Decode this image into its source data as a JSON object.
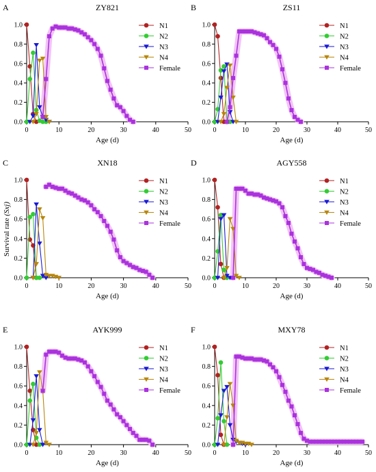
{
  "figure": {
    "ylabel": "Survival rate",
    "ylabel_sym": "(Sxj)"
  },
  "chart_data": [
    {
      "type": "line",
      "panel": "A",
      "title": "ZY821",
      "xlabel": "Age (d)",
      "ylabel": "",
      "xlim": [
        0,
        50
      ],
      "ylim": [
        0,
        1.0
      ],
      "xticks": [
        0,
        10,
        20,
        30,
        40,
        50
      ],
      "yticks": [
        0.0,
        0.2,
        0.4,
        0.6,
        0.8,
        1.0
      ],
      "legend": "top-right",
      "series": [
        {
          "name": "N1",
          "x": [
            0,
            1,
            2,
            3
          ],
          "y": [
            1.0,
            0.57,
            0.08,
            0.0
          ]
        },
        {
          "name": "N2",
          "x": [
            0,
            1,
            2,
            3,
            4,
            5,
            6
          ],
          "y": [
            0.0,
            0.44,
            0.71,
            0.12,
            0.01,
            0.0,
            0.0
          ]
        },
        {
          "name": "N3",
          "x": [
            1,
            2,
            3,
            4,
            5,
            6,
            7
          ],
          "y": [
            0.0,
            0.06,
            0.79,
            0.15,
            0.05,
            0.02,
            0.0
          ]
        },
        {
          "name": "N4",
          "x": [
            2,
            3,
            4,
            5,
            6,
            7
          ],
          "y": [
            0.0,
            0.08,
            0.63,
            0.65,
            0.05,
            0.0
          ]
        },
        {
          "name": "Female",
          "x": [
            5,
            6,
            7,
            8,
            9,
            10,
            11,
            12,
            13,
            14,
            15,
            16,
            17,
            18,
            19,
            20,
            21,
            22,
            23,
            24,
            25,
            26,
            27,
            28,
            29,
            30,
            31,
            32,
            33
          ],
          "y": [
            0.05,
            0.44,
            0.88,
            0.96,
            0.98,
            0.97,
            0.97,
            0.97,
            0.96,
            0.96,
            0.95,
            0.94,
            0.92,
            0.9,
            0.87,
            0.84,
            0.8,
            0.75,
            0.68,
            0.55,
            0.42,
            0.33,
            0.24,
            0.17,
            0.15,
            0.11,
            0.06,
            0.02,
            0.0
          ]
        }
      ]
    },
    {
      "type": "line",
      "panel": "B",
      "title": "ZS11",
      "xlabel": "Age (d)",
      "ylabel": "",
      "xlim": [
        0,
        50
      ],
      "ylim": [
        0,
        1.0
      ],
      "xticks": [
        0,
        10,
        20,
        30,
        40,
        50
      ],
      "yticks": [
        0.0,
        0.2,
        0.4,
        0.6,
        0.8,
        1.0
      ],
      "legend": "top-right",
      "series": [
        {
          "name": "N1",
          "x": [
            0,
            1,
            2,
            3
          ],
          "y": [
            1.0,
            0.88,
            0.45,
            0.0
          ]
        },
        {
          "name": "N2",
          "x": [
            0,
            1,
            2,
            3,
            4,
            5
          ],
          "y": [
            0.0,
            0.13,
            0.53,
            0.57,
            0.0,
            0.0
          ]
        },
        {
          "name": "N3",
          "x": [
            1,
            2,
            3,
            4,
            5,
            6
          ],
          "y": [
            0.0,
            0.25,
            0.52,
            0.59,
            0.1,
            0.0
          ]
        },
        {
          "name": "N4",
          "x": [
            2,
            3,
            4,
            5,
            6,
            7
          ],
          "y": [
            0.0,
            0.08,
            0.35,
            0.58,
            0.25,
            0.0
          ]
        },
        {
          "name": "Female",
          "x": [
            4,
            5,
            6,
            7,
            8,
            9,
            10,
            11,
            12,
            13,
            14,
            15,
            16,
            17,
            18,
            19,
            20,
            21,
            22,
            23,
            24,
            25,
            26,
            27,
            28
          ],
          "y": [
            0.0,
            0.15,
            0.45,
            0.68,
            0.93,
            0.93,
            0.93,
            0.93,
            0.93,
            0.92,
            0.91,
            0.9,
            0.89,
            0.86,
            0.82,
            0.79,
            0.75,
            0.67,
            0.54,
            0.4,
            0.24,
            0.12,
            0.05,
            0.02,
            0.0
          ]
        }
      ]
    },
    {
      "type": "line",
      "panel": "C",
      "title": "XN18",
      "xlabel": "Age (d)",
      "ylabel": "",
      "xlim": [
        0,
        50
      ],
      "ylim": [
        0,
        1.0
      ],
      "xticks": [
        0,
        10,
        20,
        30,
        40,
        50
      ],
      "yticks": [
        0.0,
        0.2,
        0.4,
        0.6,
        0.8,
        1.0
      ],
      "legend": "top-right",
      "series": [
        {
          "name": "N1",
          "x": [
            0,
            1,
            2,
            3
          ],
          "y": [
            1.0,
            0.39,
            0.33,
            0.0
          ]
        },
        {
          "name": "N2",
          "x": [
            0,
            1,
            2,
            3,
            4
          ],
          "y": [
            0.0,
            0.62,
            0.65,
            0.0,
            0.0
          ]
        },
        {
          "name": "N3",
          "x": [
            2,
            3,
            4,
            5,
            6
          ],
          "y": [
            0.0,
            0.75,
            0.35,
            0.02,
            0.0
          ]
        },
        {
          "name": "N4",
          "x": [
            2,
            3,
            4,
            5,
            6,
            7,
            8,
            9,
            10
          ],
          "y": [
            0.0,
            0.14,
            0.7,
            0.61,
            0.03,
            0.02,
            0.02,
            0.01,
            0.0
          ]
        },
        {
          "name": "Female",
          "x": [
            6,
            7,
            8,
            9,
            10,
            11,
            12,
            13,
            14,
            15,
            16,
            17,
            18,
            19,
            20,
            21,
            22,
            23,
            24,
            25,
            26,
            27,
            28,
            29,
            30,
            31,
            32,
            33,
            34,
            35,
            36,
            37,
            38,
            39
          ],
          "y": [
            0.93,
            0.95,
            0.93,
            0.92,
            0.91,
            0.91,
            0.89,
            0.87,
            0.86,
            0.84,
            0.82,
            0.8,
            0.79,
            0.77,
            0.74,
            0.7,
            0.67,
            0.63,
            0.58,
            0.53,
            0.47,
            0.39,
            0.28,
            0.21,
            0.17,
            0.15,
            0.13,
            0.11,
            0.1,
            0.08,
            0.07,
            0.06,
            0.03,
            0.0
          ]
        }
      ]
    },
    {
      "type": "line",
      "panel": "D",
      "title": "AGY558",
      "xlabel": "Age (d)",
      "ylabel": "",
      "xlim": [
        0,
        50
      ],
      "ylim": [
        0,
        1.0
      ],
      "xticks": [
        0,
        10,
        20,
        30,
        40,
        50
      ],
      "yticks": [
        0.0,
        0.2,
        0.4,
        0.6,
        0.8,
        1.0
      ],
      "legend": "top-right",
      "series": [
        {
          "name": "N1",
          "x": [
            0,
            1,
            2,
            3
          ],
          "y": [
            1.0,
            0.72,
            0.14,
            0.0
          ]
        },
        {
          "name": "N2",
          "x": [
            0,
            1,
            2,
            3,
            4
          ],
          "y": [
            0.0,
            0.27,
            0.64,
            0.08,
            0.0
          ]
        },
        {
          "name": "N3",
          "x": [
            1,
            2,
            3,
            4,
            5
          ],
          "y": [
            0.0,
            0.6,
            0.64,
            0.02,
            0.0
          ]
        },
        {
          "name": "N4",
          "x": [
            3,
            4,
            5,
            6,
            7,
            8
          ],
          "y": [
            0.0,
            0.1,
            0.6,
            0.5,
            0.02,
            0.0
          ]
        },
        {
          "name": "Female",
          "x": [
            6,
            7,
            8,
            9,
            10,
            11,
            12,
            13,
            14,
            15,
            16,
            17,
            18,
            19,
            20,
            21,
            22,
            23,
            24,
            25,
            26,
            27,
            28,
            29,
            30,
            31,
            32,
            33,
            34,
            35,
            36,
            37,
            38
          ],
          "y": [
            0.0,
            0.91,
            0.91,
            0.91,
            0.89,
            0.86,
            0.86,
            0.85,
            0.85,
            0.84,
            0.82,
            0.81,
            0.8,
            0.79,
            0.78,
            0.76,
            0.72,
            0.63,
            0.56,
            0.45,
            0.37,
            0.3,
            0.21,
            0.14,
            0.1,
            0.09,
            0.08,
            0.06,
            0.05,
            0.03,
            0.02,
            0.01,
            0.0
          ]
        }
      ]
    },
    {
      "type": "line",
      "panel": "E",
      "title": "AYK999",
      "xlabel": "Age (d)",
      "ylabel": "",
      "xlim": [
        0,
        50
      ],
      "ylim": [
        0,
        1.0
      ],
      "xticks": [
        0,
        10,
        20,
        30,
        40,
        50
      ],
      "yticks": [
        0.0,
        0.2,
        0.4,
        0.6,
        0.8,
        1.0
      ],
      "legend": "top-right",
      "series": [
        {
          "name": "N1",
          "x": [
            0,
            1,
            2,
            3
          ],
          "y": [
            1.0,
            0.55,
            0.15,
            0.0
          ]
        },
        {
          "name": "N2",
          "x": [
            0,
            1,
            2,
            3,
            4
          ],
          "y": [
            0.0,
            0.45,
            0.62,
            0.07,
            0.0
          ]
        },
        {
          "name": "N3",
          "x": [
            1,
            2,
            3,
            4,
            5
          ],
          "y": [
            0.0,
            0.25,
            0.7,
            0.15,
            0.0
          ]
        },
        {
          "name": "N4",
          "x": [
            2,
            3,
            4,
            5,
            6,
            7
          ],
          "y": [
            0.0,
            0.12,
            0.74,
            0.55,
            0.02,
            0.0
          ]
        },
        {
          "name": "Female",
          "x": [
            5,
            6,
            7,
            8,
            9,
            10,
            11,
            12,
            13,
            14,
            15,
            16,
            17,
            18,
            19,
            20,
            21,
            22,
            23,
            24,
            25,
            26,
            27,
            28,
            29,
            30,
            31,
            32,
            33,
            34,
            35,
            36,
            37,
            38,
            39
          ],
          "y": [
            0.55,
            0.92,
            0.95,
            0.95,
            0.95,
            0.94,
            0.91,
            0.89,
            0.88,
            0.88,
            0.88,
            0.87,
            0.86,
            0.84,
            0.8,
            0.75,
            0.7,
            0.64,
            0.59,
            0.52,
            0.45,
            0.41,
            0.36,
            0.31,
            0.28,
            0.24,
            0.2,
            0.16,
            0.12,
            0.09,
            0.05,
            0.05,
            0.05,
            0.04,
            0.0
          ]
        }
      ]
    },
    {
      "type": "line",
      "panel": "F",
      "title": "MXY78",
      "xlabel": "Age (d)",
      "ylabel": "",
      "xlim": [
        0,
        50
      ],
      "ylim": [
        0,
        1.0
      ],
      "xticks": [
        0,
        10,
        20,
        30,
        40,
        50
      ],
      "yticks": [
        0.0,
        0.2,
        0.4,
        0.6,
        0.8,
        1.0
      ],
      "legend": "top-right",
      "series": [
        {
          "name": "N1",
          "x": [
            0,
            1,
            2,
            3
          ],
          "y": [
            1.0,
            0.71,
            0.1,
            0.0
          ]
        },
        {
          "name": "N2",
          "x": [
            0,
            1,
            2,
            3,
            4
          ],
          "y": [
            0.0,
            0.27,
            0.84,
            0.24,
            0.0
          ]
        },
        {
          "name": "N3",
          "x": [
            1,
            2,
            3,
            4,
            5,
            6,
            7,
            8,
            9,
            10
          ],
          "y": [
            0.0,
            0.3,
            0.55,
            0.59,
            0.2,
            0.05,
            0.03,
            0.02,
            0.01,
            0.0
          ]
        },
        {
          "name": "N4",
          "x": [
            3,
            4,
            5,
            6,
            7,
            8,
            9,
            10,
            11,
            12
          ],
          "y": [
            0.0,
            0.28,
            0.62,
            0.4,
            0.04,
            0.02,
            0.02,
            0.01,
            0.01,
            0.0
          ]
        },
        {
          "name": "Female",
          "x": [
            6,
            7,
            8,
            9,
            10,
            11,
            12,
            13,
            14,
            15,
            16,
            17,
            18,
            19,
            20,
            21,
            22,
            23,
            24,
            25,
            26,
            27,
            28,
            29,
            30,
            31,
            32,
            33,
            34,
            35,
            36,
            37,
            38,
            39,
            40,
            41,
            42,
            43,
            44,
            45,
            46,
            47,
            48
          ],
          "y": [
            0.0,
            0.9,
            0.9,
            0.89,
            0.88,
            0.88,
            0.88,
            0.87,
            0.87,
            0.87,
            0.86,
            0.85,
            0.82,
            0.79,
            0.75,
            0.69,
            0.61,
            0.54,
            0.45,
            0.39,
            0.3,
            0.21,
            0.12,
            0.06,
            0.04,
            0.03,
            0.03,
            0.03,
            0.03,
            0.03,
            0.03,
            0.03,
            0.03,
            0.03,
            0.03,
            0.03,
            0.03,
            0.03,
            0.03,
            0.03,
            0.03,
            0.03,
            0.03
          ]
        }
      ]
    }
  ],
  "styles": {
    "N1": {
      "color": "#b22222",
      "marker": "circle"
    },
    "N2": {
      "color": "#33cc33",
      "marker": "circle"
    },
    "N3": {
      "color": "#1a1ad6",
      "marker": "triangle-down"
    },
    "N4": {
      "color": "#b8860b",
      "marker": "triangle-down"
    },
    "Female": {
      "color": "#aa33dd",
      "marker": "square",
      "halo": "#f3c3f7"
    }
  }
}
